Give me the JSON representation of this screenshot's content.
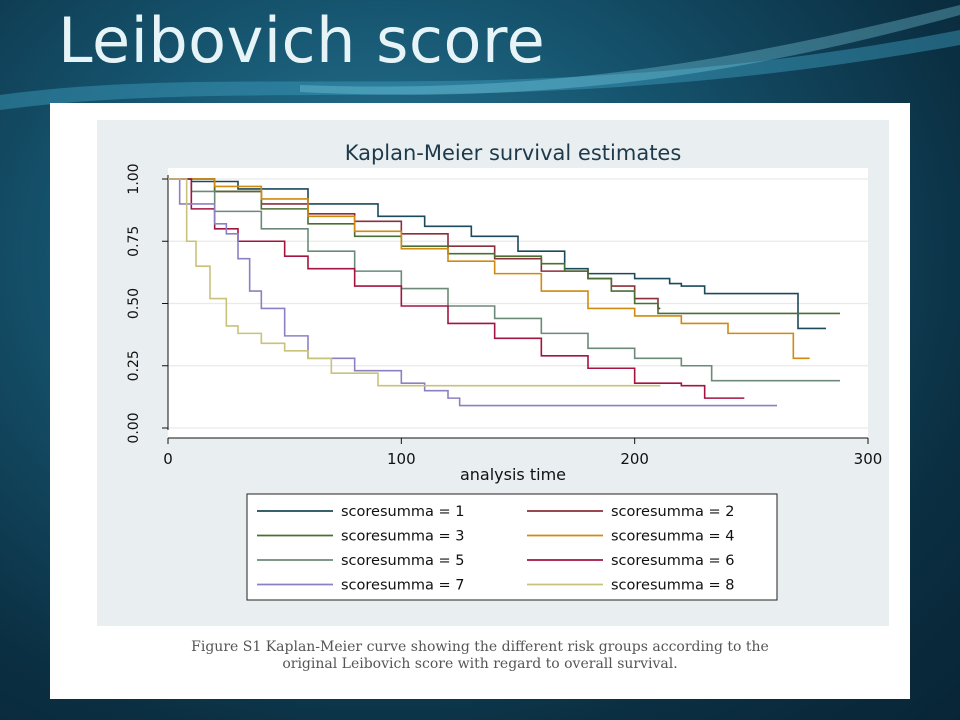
{
  "slide": {
    "title": "Leibovich score"
  },
  "caption": {
    "line1": "Figure S1 Kaplan-Meier  curve showing the different risk groups according to the",
    "line2": "original  Leibovich score with regard to overall  survival."
  },
  "chart_data": {
    "type": "line",
    "step": true,
    "title": "Kaplan-Meier survival estimates",
    "xlabel": "analysis time",
    "ylabel": "",
    "xlim": [
      0,
      300
    ],
    "ylim": [
      0,
      1
    ],
    "xticks": [
      "0",
      "100",
      "200",
      "300"
    ],
    "yticks": [
      "0.00",
      "0.25",
      "0.50",
      "0.75",
      "1.00"
    ],
    "grid": true,
    "legend_position": "bottom",
    "series": [
      {
        "name": "scoresumma = 1",
        "color": "#1b4a5a",
        "x": [
          0,
          10,
          30,
          60,
          90,
          110,
          130,
          150,
          170,
          180,
          200,
          215,
          220,
          230,
          270,
          282
        ],
        "y": [
          1.0,
          0.99,
          0.96,
          0.9,
          0.85,
          0.81,
          0.77,
          0.71,
          0.64,
          0.62,
          0.6,
          0.58,
          0.57,
          0.54,
          0.4,
          0.4
        ]
      },
      {
        "name": "scoresumma = 2",
        "color": "#8b2f3c",
        "x": [
          0,
          20,
          40,
          60,
          80,
          100,
          120,
          140,
          160,
          180,
          190,
          200,
          210,
          211
        ],
        "y": [
          1.0,
          0.95,
          0.9,
          0.86,
          0.83,
          0.78,
          0.73,
          0.68,
          0.63,
          0.6,
          0.57,
          0.52,
          0.48,
          0.48
        ]
      },
      {
        "name": "scoresumma = 3",
        "color": "#4a6f33",
        "x": [
          0,
          20,
          40,
          60,
          80,
          100,
          120,
          140,
          160,
          170,
          180,
          190,
          200,
          210,
          250,
          288
        ],
        "y": [
          1.0,
          0.95,
          0.88,
          0.82,
          0.77,
          0.73,
          0.7,
          0.69,
          0.66,
          0.63,
          0.6,
          0.55,
          0.5,
          0.46,
          0.46,
          0.46
        ]
      },
      {
        "name": "scoresumma = 4",
        "color": "#d08a10",
        "x": [
          0,
          20,
          40,
          60,
          80,
          100,
          120,
          140,
          160,
          180,
          200,
          220,
          240,
          268,
          275
        ],
        "y": [
          1.0,
          0.97,
          0.92,
          0.85,
          0.79,
          0.72,
          0.67,
          0.62,
          0.55,
          0.48,
          0.45,
          0.42,
          0.38,
          0.28,
          0.28
        ]
      },
      {
        "name": "scoresumma = 5",
        "color": "#6b8a7a",
        "x": [
          0,
          10,
          20,
          40,
          60,
          80,
          100,
          120,
          140,
          160,
          180,
          200,
          220,
          230,
          233,
          288
        ],
        "y": [
          1.0,
          0.95,
          0.87,
          0.8,
          0.71,
          0.63,
          0.56,
          0.49,
          0.44,
          0.38,
          0.32,
          0.28,
          0.25,
          0.25,
          0.19,
          0.19
        ]
      },
      {
        "name": "scoresumma = 6",
        "color": "#a31541",
        "x": [
          0,
          10,
          20,
          30,
          50,
          60,
          80,
          100,
          120,
          140,
          160,
          180,
          200,
          220,
          230,
          247
        ],
        "y": [
          1.0,
          0.88,
          0.8,
          0.75,
          0.69,
          0.64,
          0.57,
          0.49,
          0.42,
          0.36,
          0.29,
          0.24,
          0.18,
          0.17,
          0.12,
          0.12
        ]
      },
      {
        "name": "scoresumma = 7",
        "color": "#8c80c4",
        "x": [
          0,
          5,
          20,
          25,
          30,
          35,
          40,
          50,
          60,
          80,
          100,
          110,
          120,
          125,
          200,
          261
        ],
        "y": [
          1.0,
          0.9,
          0.82,
          0.78,
          0.68,
          0.55,
          0.48,
          0.37,
          0.28,
          0.23,
          0.18,
          0.15,
          0.12,
          0.09,
          0.09,
          0.09
        ]
      },
      {
        "name": "scoresumma = 8",
        "color": "#c8c27a",
        "x": [
          0,
          8,
          12,
          18,
          25,
          30,
          40,
          50,
          60,
          70,
          90,
          130,
          190,
          210,
          211
        ],
        "y": [
          1.0,
          0.75,
          0.65,
          0.52,
          0.41,
          0.38,
          0.34,
          0.31,
          0.28,
          0.22,
          0.17,
          0.17,
          0.17,
          0.17,
          0.17
        ]
      }
    ]
  }
}
